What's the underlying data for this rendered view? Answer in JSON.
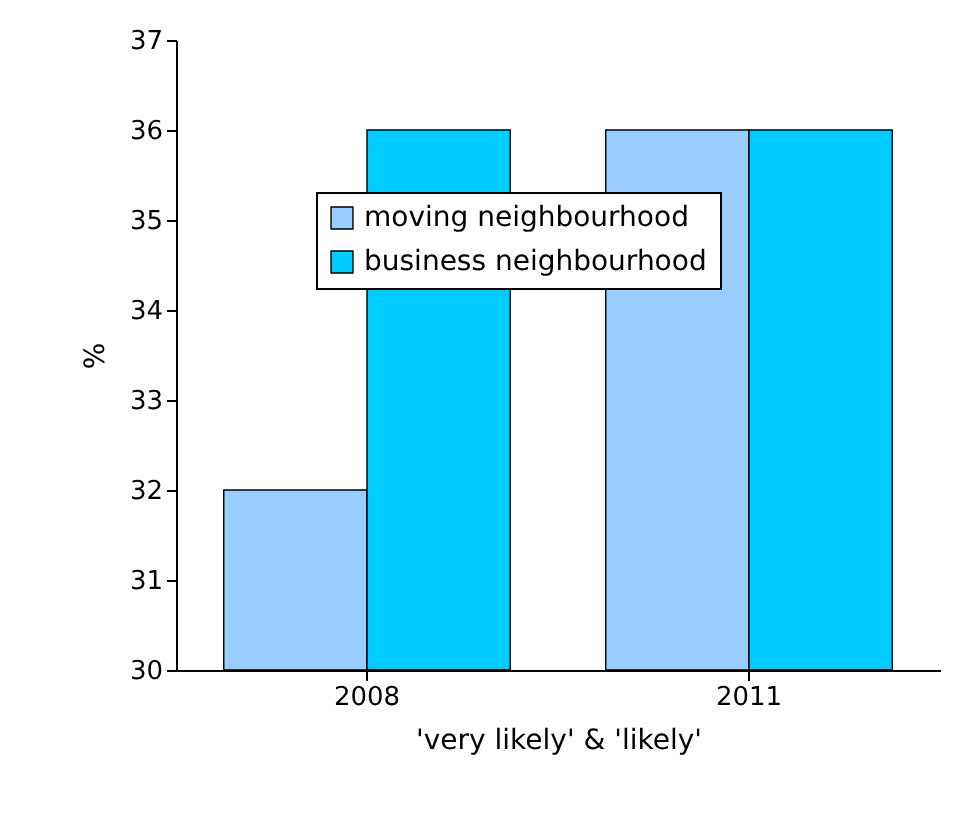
{
  "chart_data": {
    "type": "bar",
    "categories": [
      "2008",
      "2011"
    ],
    "xlabel": "'very likely' & 'likely'",
    "ylabel": "%",
    "series": [
      {
        "name": "moving neighbourhood",
        "color": "#99ccff",
        "values": [
          32,
          36
        ]
      },
      {
        "name": "business neighbourhood",
        "color": "#00ccff",
        "values": [
          36,
          36
        ]
      }
    ],
    "ylim": [
      30,
      37
    ],
    "yticks": [
      30,
      31,
      32,
      33,
      34,
      35,
      36,
      37
    ],
    "legend": "top"
  }
}
